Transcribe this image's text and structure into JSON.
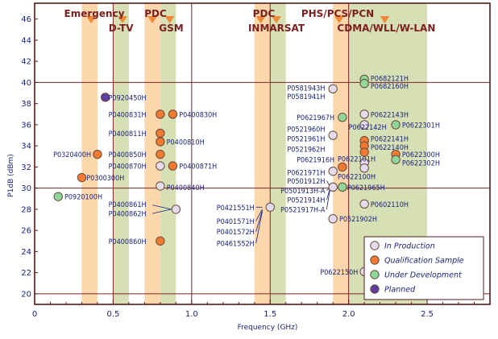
{
  "chart_data": {
    "type": "scatter",
    "xlabel": "Frequency (GHz)",
    "ylabel": "P1dB (dBm)",
    "xlim": [
      0,
      2.9
    ],
    "ylim": [
      19,
      47.5
    ],
    "x_ticks": [
      {
        "v": 0,
        "label": "0"
      },
      {
        "v": 0.5,
        "label": "0.5"
      },
      {
        "v": 1.0,
        "label": "1.0"
      },
      {
        "v": 1.5,
        "label": "1.5"
      },
      {
        "v": 2.0,
        "label": "2.0"
      },
      {
        "v": 2.5,
        "label": "2.5"
      }
    ],
    "y_ticks": [
      20,
      22,
      24,
      26,
      28,
      30,
      32,
      34,
      36,
      38,
      40,
      42,
      44,
      46
    ],
    "bands": [
      {
        "x0": 0.3,
        "x1": 0.4,
        "kind": "orange"
      },
      {
        "x0": 0.5,
        "x1": 0.6,
        "kind": "green"
      },
      {
        "x0": 0.7,
        "x1": 0.8,
        "kind": "orange"
      },
      {
        "x0": 0.8,
        "x1": 0.9,
        "kind": "green"
      },
      {
        "x0": 1.4,
        "x1": 1.5,
        "kind": "orange"
      },
      {
        "x0": 1.5,
        "x1": 1.6,
        "kind": "green"
      },
      {
        "x0": 1.9,
        "x1": 2.0,
        "kind": "orange"
      },
      {
        "x0": 2.0,
        "x1": 2.2,
        "kind": "green"
      },
      {
        "x0": 2.2,
        "x1": 2.5,
        "kind": "green"
      }
    ],
    "band_labels": [
      {
        "text": "Emergency",
        "x": 0.38,
        "row": 1
      },
      {
        "text": "D-TV",
        "x": 0.55,
        "row": 2
      },
      {
        "text": "PDC",
        "x": 0.77,
        "row": 1
      },
      {
        "text": "GSM",
        "x": 0.87,
        "row": 2
      },
      {
        "text": "PDC",
        "x": 1.46,
        "row": 1
      },
      {
        "text": "INMARSAT",
        "x": 1.54,
        "row": 2
      },
      {
        "text": "PHS/PCS/PCN",
        "x": 1.93,
        "row": 1
      },
      {
        "text": "CDMA/WLL/W-LAN",
        "x": 2.24,
        "row": 2
      }
    ],
    "band_arrows": [
      0.36,
      0.56,
      0.75,
      0.86,
      1.44,
      1.54,
      1.94,
      2.23
    ],
    "status_colors": {
      "production": "#e4dcec",
      "qualification": "#ee7a33",
      "development": "#8fd79a",
      "planned": "#5c3f9e"
    },
    "legend": {
      "position": "bottom-right",
      "items": [
        {
          "key": "production",
          "label": "In Production"
        },
        {
          "key": "qualification",
          "label": "Qualification Sample"
        },
        {
          "key": "development",
          "label": "Under Development"
        },
        {
          "key": "planned",
          "label": "Planned"
        }
      ]
    },
    "points": [
      {
        "x": 0.45,
        "y": 38.6,
        "s": "planned"
      },
      {
        "x": 0.8,
        "y": 37.0,
        "s": "qualification"
      },
      {
        "x": 0.88,
        "y": 37.0,
        "s": "qualification"
      },
      {
        "x": 0.8,
        "y": 35.2,
        "s": "qualification"
      },
      {
        "x": 0.8,
        "y": 34.4,
        "s": "qualification"
      },
      {
        "x": 0.4,
        "y": 33.2,
        "s": "qualification"
      },
      {
        "x": 0.8,
        "y": 33.2,
        "s": "qualification"
      },
      {
        "x": 0.8,
        "y": 32.1,
        "s": "production"
      },
      {
        "x": 0.88,
        "y": 32.1,
        "s": "qualification"
      },
      {
        "x": 0.3,
        "y": 31.0,
        "s": "qualification"
      },
      {
        "x": 0.8,
        "y": 30.2,
        "s": "production"
      },
      {
        "x": 0.15,
        "y": 29.2,
        "s": "development"
      },
      {
        "x": 0.9,
        "y": 28.0,
        "s": "production"
      },
      {
        "x": 0.8,
        "y": 25.0,
        "s": "qualification"
      },
      {
        "x": 1.5,
        "y": 28.2,
        "s": "production"
      },
      {
        "x": 1.9,
        "y": 39.4,
        "s": "production"
      },
      {
        "x": 1.9,
        "y": 35.0,
        "s": "production"
      },
      {
        "x": 1.96,
        "y": 36.7,
        "s": "development"
      },
      {
        "x": 1.9,
        "y": 31.6,
        "s": "production"
      },
      {
        "x": 1.9,
        "y": 30.1,
        "s": "production"
      },
      {
        "x": 1.9,
        "y": 27.1,
        "s": "production"
      },
      {
        "x": 1.96,
        "y": 32.0,
        "s": "qualification"
      },
      {
        "x": 1.96,
        "y": 30.1,
        "s": "development"
      },
      {
        "x": 2.1,
        "y": 40.3,
        "s": "development"
      },
      {
        "x": 2.1,
        "y": 39.9,
        "s": "development"
      },
      {
        "x": 2.1,
        "y": 37.0,
        "s": "production"
      },
      {
        "x": 2.1,
        "y": 36.0,
        "s": "production"
      },
      {
        "x": 2.1,
        "y": 34.5,
        "s": "qualification"
      },
      {
        "x": 2.1,
        "y": 34.0,
        "s": "qualification"
      },
      {
        "x": 2.1,
        "y": 33.4,
        "s": "qualification"
      },
      {
        "x": 2.1,
        "y": 32.4,
        "s": "production"
      },
      {
        "x": 2.1,
        "y": 31.9,
        "s": "production"
      },
      {
        "x": 2.3,
        "y": 36.0,
        "s": "development"
      },
      {
        "x": 2.3,
        "y": 33.2,
        "s": "qualification"
      },
      {
        "x": 2.3,
        "y": 32.7,
        "s": "development"
      },
      {
        "x": 2.1,
        "y": 28.5,
        "s": "production"
      },
      {
        "x": 2.1,
        "y": 22.1,
        "s": "production"
      }
    ],
    "point_labels": [
      {
        "text": "P0920450H",
        "x": 0.47,
        "y": 38.6,
        "a": "start"
      },
      {
        "text": "P0400831H",
        "x": 0.47,
        "y": 37.0,
        "a": "start"
      },
      {
        "text": "P0400830H",
        "x": 0.92,
        "y": 37.0,
        "a": "start"
      },
      {
        "text": "P0400811H",
        "x": 0.47,
        "y": 35.2,
        "a": "start"
      },
      {
        "text": "P0400810H",
        "x": 0.84,
        "y": 34.4,
        "a": "start"
      },
      {
        "text": "P0320400H",
        "x": 0.36,
        "y": 33.2,
        "a": "end"
      },
      {
        "text": "P0400850H",
        "x": 0.47,
        "y": 33.2,
        "a": "start"
      },
      {
        "text": "P0400870H",
        "x": 0.47,
        "y": 32.1,
        "a": "start"
      },
      {
        "text": "P0400871H",
        "x": 0.92,
        "y": 32.1,
        "a": "start"
      },
      {
        "text": "P0300300H",
        "x": 0.33,
        "y": 31.0,
        "a": "start"
      },
      {
        "text": "P0400840H",
        "x": 0.84,
        "y": 30.1,
        "a": "start"
      },
      {
        "text": "P0920100H",
        "x": 0.19,
        "y": 29.2,
        "a": "start"
      },
      {
        "text": "P0400861H",
        "x": 0.47,
        "y": 28.5,
        "a": "start"
      },
      {
        "text": "P0400862H",
        "x": 0.47,
        "y": 27.6,
        "a": "start"
      },
      {
        "text": "P0400860H",
        "x": 0.47,
        "y": 25.0,
        "a": "start"
      },
      {
        "text": "P0421551H",
        "x": 1.4,
        "y": 28.2,
        "a": "end"
      },
      {
        "text": "P0401571H",
        "x": 1.4,
        "y": 26.9,
        "a": "end"
      },
      {
        "text": "P0401572H",
        "x": 1.4,
        "y": 25.9,
        "a": "end"
      },
      {
        "text": "P0461552H",
        "x": 1.4,
        "y": 24.8,
        "a": "end"
      },
      {
        "text": "P0581943H",
        "x": 1.85,
        "y": 39.5,
        "a": "end"
      },
      {
        "text": "P0581941H",
        "x": 1.85,
        "y": 38.7,
        "a": "end"
      },
      {
        "text": "P0621967H",
        "x": 1.91,
        "y": 36.7,
        "a": "end"
      },
      {
        "text": "P0521960H",
        "x": 1.85,
        "y": 35.6,
        "a": "end"
      },
      {
        "text": "P0521961H",
        "x": 1.85,
        "y": 34.7,
        "a": "end"
      },
      {
        "text": "P0521962H",
        "x": 1.85,
        "y": 33.7,
        "a": "end"
      },
      {
        "text": "P0621916H",
        "x": 1.91,
        "y": 32.7,
        "a": "end"
      },
      {
        "text": "P0621971H",
        "x": 1.85,
        "y": 31.5,
        "a": "end"
      },
      {
        "text": "P0501912H",
        "x": 1.85,
        "y": 30.7,
        "a": "end"
      },
      {
        "text": "P0501913H-A",
        "x": 1.85,
        "y": 29.8,
        "a": "end"
      },
      {
        "text": "P0521914H",
        "x": 1.85,
        "y": 28.9,
        "a": "end"
      },
      {
        "text": "P0521917H-A",
        "x": 1.85,
        "y": 28.0,
        "a": "end"
      },
      {
        "text": "P0521902H",
        "x": 1.94,
        "y": 27.1,
        "a": "start"
      },
      {
        "text": "P0622101H",
        "x": 1.93,
        "y": 32.8,
        "a": "start"
      },
      {
        "text": "P0622100H",
        "x": 1.93,
        "y": 31.1,
        "a": "start"
      },
      {
        "text": "P0621965H",
        "x": 1.99,
        "y": 30.1,
        "a": "start"
      },
      {
        "text": "P0682121H",
        "x": 2.14,
        "y": 40.4,
        "a": "start"
      },
      {
        "text": "P0682160H",
        "x": 2.14,
        "y": 39.7,
        "a": "start"
      },
      {
        "text": "P0622143H",
        "x": 2.14,
        "y": 37.0,
        "a": "start"
      },
      {
        "text": "P0622142H",
        "x": 2.0,
        "y": 35.8,
        "a": "start"
      },
      {
        "text": "P0622141H",
        "x": 2.14,
        "y": 34.7,
        "a": "start"
      },
      {
        "text": "P0622140H",
        "x": 2.14,
        "y": 33.9,
        "a": "start"
      },
      {
        "text": "P0622301H",
        "x": 2.34,
        "y": 36.0,
        "a": "start"
      },
      {
        "text": "P0622300H",
        "x": 2.34,
        "y": 33.2,
        "a": "start"
      },
      {
        "text": "P0622302H",
        "x": 2.34,
        "y": 32.4,
        "a": "start"
      },
      {
        "text": "P0602110H",
        "x": 2.14,
        "y": 28.5,
        "a": "start"
      },
      {
        "text": "P0622150H",
        "x": 2.06,
        "y": 22.1,
        "a": "end"
      }
    ]
  }
}
